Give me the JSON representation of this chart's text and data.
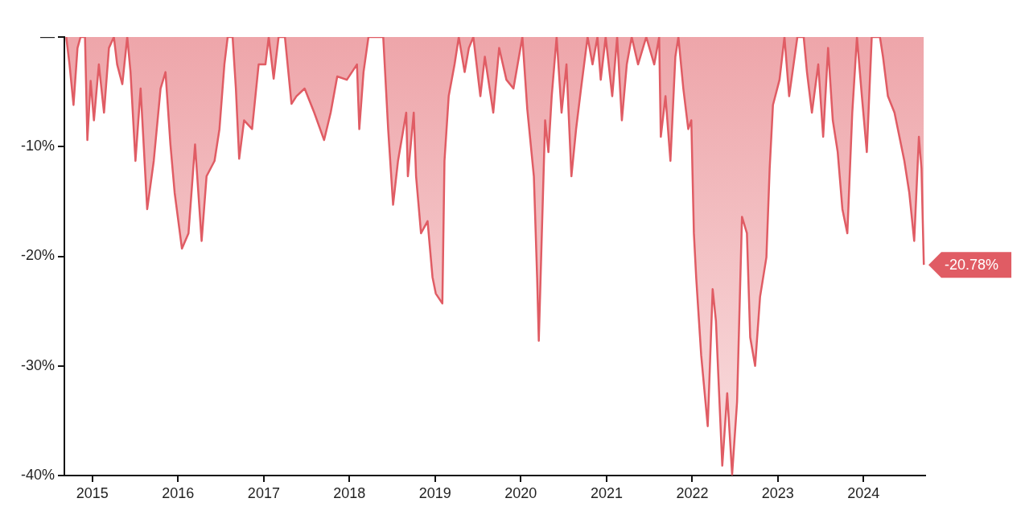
{
  "chart_data": {
    "type": "area",
    "color": "#e05c64",
    "marker": "none",
    "line_style": "solid",
    "legend": false,
    "xlim": [
      "2014-09-04",
      "2024-09-20"
    ],
    "xticks": [
      "2015",
      "2016",
      "2017",
      "2018",
      "2019",
      "2020",
      "2021",
      "2022",
      "2023",
      "2024"
    ],
    "ylim": [
      -40,
      0
    ],
    "yticks": [
      {
        "value": 0,
        "label": "—"
      },
      {
        "value": -10,
        "label": "-10%"
      },
      {
        "value": -20,
        "label": "-20%"
      },
      {
        "value": -30,
        "label": "-30%"
      },
      {
        "value": -40,
        "label": "-40%"
      }
    ],
    "x": [
      "2014-09-12",
      "2014-09-26",
      "2014-10-13",
      "2014-10-30",
      "2014-11-12",
      "2014-12-01",
      "2014-12-11",
      "2014-12-25",
      "2015-01-08",
      "2015-01-29",
      "2015-02-20",
      "2015-03-13",
      "2015-04-03",
      "2015-04-17",
      "2015-05-09",
      "2015-05-30",
      "2015-06-13",
      "2015-07-04",
      "2015-07-26",
      "2015-08-23",
      "2015-09-20",
      "2015-10-19",
      "2015-11-09",
      "2015-11-30",
      "2015-12-18",
      "2016-01-18",
      "2016-02-15",
      "2016-03-14",
      "2016-04-11",
      "2016-05-02",
      "2016-06-05",
      "2016-06-26",
      "2016-07-17",
      "2016-07-31",
      "2016-08-21",
      "2016-09-04",
      "2016-09-18",
      "2016-10-09",
      "2016-11-12",
      "2016-12-10",
      "2017-01-08",
      "2017-01-22",
      "2017-02-12",
      "2017-03-05",
      "2017-04-01",
      "2017-04-29",
      "2017-05-20",
      "2017-06-24",
      "2017-08-04",
      "2017-09-15",
      "2017-10-13",
      "2017-11-10",
      "2017-12-21",
      "2018-02-02",
      "2018-02-12",
      "2018-03-02",
      "2018-03-23",
      "2018-05-25",
      "2018-06-15",
      "2018-07-06",
      "2018-07-27",
      "2018-08-31",
      "2018-09-07",
      "2018-10-02",
      "2018-10-12",
      "2018-11-02",
      "2018-11-30",
      "2018-12-21",
      "2019-01-04",
      "2019-02-01",
      "2019-02-10",
      "2019-02-28",
      "2019-03-25",
      "2019-04-12",
      "2019-05-07",
      "2019-05-25",
      "2019-06-13",
      "2019-07-13",
      "2019-08-01",
      "2019-09-06",
      "2019-10-01",
      "2019-11-01",
      "2019-12-01",
      "2020-01-08",
      "2020-01-29",
      "2020-02-26",
      "2020-03-11",
      "2020-03-18",
      "2020-03-31",
      "2020-04-14",
      "2020-04-28",
      "2020-05-12",
      "2020-06-02",
      "2020-06-23",
      "2020-07-14",
      "2020-08-04",
      "2020-08-24",
      "2020-09-14",
      "2020-10-12",
      "2020-11-02",
      "2020-11-23",
      "2020-12-07",
      "2020-12-28",
      "2021-01-25",
      "2021-02-15",
      "2021-03-07",
      "2021-03-28",
      "2021-04-18",
      "2021-05-15",
      "2021-06-19",
      "2021-07-23",
      "2021-08-13",
      "2021-08-20",
      "2021-09-09",
      "2021-09-30",
      "2021-10-21",
      "2021-11-03",
      "2021-11-24",
      "2021-12-15",
      "2021-12-28",
      "2022-01-08",
      "2022-01-18",
      "2022-02-08",
      "2022-03-08",
      "2022-03-29",
      "2022-04-12",
      "2022-05-09",
      "2022-05-30",
      "2022-06-20",
      "2022-07-11",
      "2022-08-01",
      "2022-08-22",
      "2022-09-05",
      "2022-09-26",
      "2022-10-17",
      "2022-11-13",
      "2022-11-27",
      "2022-12-11",
      "2023-01-08",
      "2023-01-29",
      "2023-02-18",
      "2023-03-25",
      "2023-04-21",
      "2023-05-05",
      "2023-05-26",
      "2023-06-22",
      "2023-07-13",
      "2023-08-03",
      "2023-08-23",
      "2023-09-13",
      "2023-10-03",
      "2023-10-24",
      "2023-11-14",
      "2023-12-04",
      "2023-12-25",
      "2024-01-15",
      "2024-02-05",
      "2024-03-11",
      "2024-03-24",
      "2024-04-14",
      "2024-05-12",
      "2024-06-02",
      "2024-06-23",
      "2024-07-14",
      "2024-08-04",
      "2024-08-24",
      "2024-09-04",
      "2024-09-14"
    ],
    "values": [
      0,
      -2.5,
      -6.2,
      -1.0,
      0,
      0,
      -9.4,
      -4.0,
      -7.6,
      -2.5,
      -6.9,
      -1.0,
      0,
      -2.5,
      -4.3,
      0,
      -3.2,
      -11.3,
      -4.7,
      -15.7,
      -11.3,
      -4.7,
      -3.2,
      -9.8,
      -14.2,
      -19.3,
      -17.9,
      -9.8,
      -18.6,
      -12.7,
      -11.3,
      -8.4,
      -2.5,
      0,
      0,
      -4.7,
      -11.1,
      -7.6,
      -8.4,
      -2.5,
      -2.5,
      0,
      -3.8,
      0,
      0,
      -6.1,
      -5.4,
      -4.7,
      -6.9,
      -9.4,
      -6.9,
      -3.6,
      -3.9,
      -2.5,
      -8.4,
      -3.2,
      0,
      0,
      -8.4,
      -15.3,
      -11.3,
      -6.9,
      -12.7,
      -6.9,
      -12.7,
      -17.9,
      -16.8,
      -21.9,
      -23.4,
      -24.3,
      -11.3,
      -5.4,
      -2.5,
      0,
      -3.2,
      -1.0,
      0,
      -5.4,
      -1.8,
      -6.9,
      -1.0,
      -3.9,
      -4.7,
      0,
      -6.6,
      -12.7,
      -22.0,
      -27.7,
      -17.9,
      -7.6,
      -10.5,
      -5.4,
      0,
      -6.9,
      -2.5,
      -12.7,
      -8.4,
      -4.7,
      0,
      -2.5,
      0,
      -3.9,
      0,
      -5.4,
      0,
      -7.6,
      -2.5,
      0,
      -2.5,
      0,
      -2.5,
      0,
      -9.1,
      -5.4,
      -11.3,
      -1.8,
      0,
      -4.7,
      -8.4,
      -7.6,
      -17.9,
      -22.0,
      -29.0,
      -35.5,
      -23.0,
      -25.9,
      -39.1,
      -32.5,
      -39.9,
      -33.3,
      -16.4,
      -17.9,
      -27.4,
      -30.0,
      -23.7,
      -20.1,
      -12.0,
      -6.2,
      -3.9,
      0,
      -5.4,
      0,
      0,
      -3.2,
      -6.9,
      -2.5,
      -9.1,
      -1.0,
      -7.6,
      -10.5,
      -15.7,
      -17.9,
      -6.9,
      0,
      -5.4,
      -10.5,
      0,
      0,
      -1.8,
      -5.4,
      -6.9,
      -9.1,
      -11.3,
      -14.2,
      -18.6,
      -9.1,
      -12.0,
      -20.78
    ],
    "annotations": [
      {
        "text": "-20.78%",
        "x": "2024-09-14",
        "y": -20.78
      }
    ]
  }
}
